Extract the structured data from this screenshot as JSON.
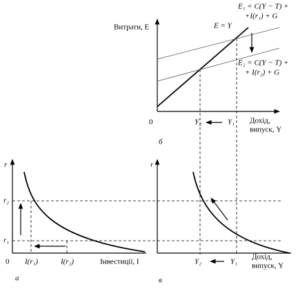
{
  "panel_b": {
    "y_axis_label": "Витрати, E",
    "line_eq": "E = Y",
    "e1_line1": "E₁ = C(Y − T) +",
    "e1_line2": "+I(r₁) + G",
    "e2_line1": "E₂ = C(Y − T) +",
    "e2_line2": "+ I(r₂) + G",
    "origin": "0",
    "y2": "Y₂",
    "y1": "Y₁",
    "x_axis_label_1": "Дохід,",
    "x_axis_label_2": "випуск, Y",
    "caption": "б"
  },
  "panel_a": {
    "y_axis_label": "r",
    "r2": "r₂",
    "r1": "r₁",
    "origin": "0",
    "i_r1": "I(r₁)",
    "i_r2": "I(r₂)",
    "x_axis_label": "Інвестиції, I",
    "caption": "а"
  },
  "panel_c": {
    "y_axis_label": "r",
    "y2": "Y₂",
    "y1": "Y₁",
    "x_axis_label_1": "Дохід,",
    "x_axis_label_2": "випуск, Y",
    "caption": "в"
  }
}
